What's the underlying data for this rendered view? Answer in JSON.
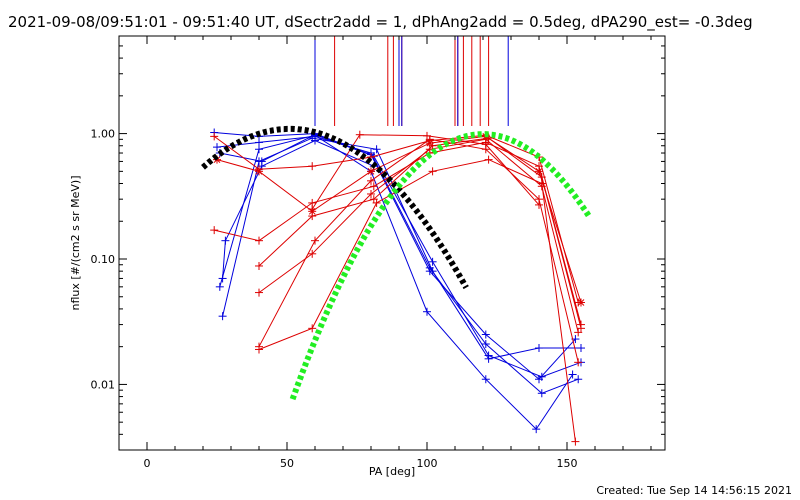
{
  "chart_data": {
    "type": "line",
    "title": "2021-09-08/09:51:01 - 09:51:40 UT, dSectr2add = 1, dPhAng2add = 0.5deg, dPA290_est= -0.3deg",
    "xlabel": "PA [deg]",
    "ylabel": "nflux [#/(cm2 s sr MeV)]",
    "footer": "Created: Tue Sep 14 14:56:15 2021",
    "xlim": [
      -10,
      185
    ],
    "ylim": [
      0.003,
      6
    ],
    "yscale": "log",
    "x_ticks": [
      0,
      50,
      100,
      150
    ],
    "x_tick_labels": [
      "0",
      "50",
      "100",
      "150"
    ],
    "y_ticks": [
      0.01,
      0.1,
      1.0
    ],
    "y_tick_labels": [
      "0.01",
      "0.10",
      "1.00"
    ],
    "legend": "none",
    "grid": false,
    "colors": {
      "red": "#dd0000",
      "blue": "#0000dd",
      "black": "#000000",
      "green": "#22ee22"
    },
    "markers": [
      {
        "x": 60,
        "color": "red"
      },
      {
        "x": 67,
        "color": "red"
      },
      {
        "x": 86,
        "color": "red"
      },
      {
        "x": 88,
        "color": "red"
      },
      {
        "x": 90,
        "color": "red"
      },
      {
        "x": 91,
        "color": "red"
      },
      {
        "x": 110,
        "color": "red"
      },
      {
        "x": 111,
        "color": "red"
      },
      {
        "x": 113,
        "color": "red"
      },
      {
        "x": 116,
        "color": "red"
      },
      {
        "x": 119,
        "color": "red"
      },
      {
        "x": 122,
        "color": "red"
      },
      {
        "x": 60,
        "color": "blue"
      },
      {
        "x": 90,
        "color": "blue"
      },
      {
        "x": 91,
        "color": "blue"
      },
      {
        "x": 111,
        "color": "blue"
      },
      {
        "x": 129,
        "color": "blue"
      }
    ],
    "series": [
      {
        "color": "blue",
        "marker": "plus",
        "x": [
          24,
          40,
          60,
          80,
          101,
          121,
          140,
          153
        ],
        "y": [
          1.02,
          0.95,
          1.0,
          0.68,
          0.08,
          0.025,
          0.011,
          0.023
        ]
      },
      {
        "color": "blue",
        "marker": "plus",
        "x": [
          25,
          40,
          60,
          80,
          101,
          121,
          141,
          154
        ],
        "y": [
          0.78,
          0.85,
          0.95,
          0.7,
          0.085,
          0.021,
          0.0085,
          0.011
        ]
      },
      {
        "color": "blue",
        "marker": "plus",
        "x": [
          26,
          41,
          60,
          81,
          102,
          122,
          141,
          155
        ],
        "y": [
          0.7,
          0.6,
          0.98,
          0.66,
          0.095,
          0.017,
          0.0115,
          0.015
        ]
      },
      {
        "color": "blue",
        "marker": "plus",
        "x": [
          26,
          40,
          60,
          80,
          100,
          121,
          139,
          152
        ],
        "y": [
          0.06,
          0.75,
          0.97,
          0.5,
          0.038,
          0.011,
          0.0044,
          0.012
        ]
      },
      {
        "color": "blue",
        "marker": "plus",
        "x": [
          27,
          40,
          59,
          82,
          102,
          122,
          140,
          155
        ],
        "y": [
          0.035,
          0.6,
          0.92,
          0.75,
          0.08,
          0.016,
          0.0195,
          0.0195
        ]
      },
      {
        "color": "blue",
        "marker": "plus",
        "x": [
          27,
          28,
          41,
          60,
          81
        ],
        "y": [
          0.07,
          0.14,
          0.55,
          0.88,
          0.55
        ]
      },
      {
        "color": "red",
        "marker": "plus",
        "x": [
          24,
          40,
          59,
          80,
          101,
          121,
          140,
          154
        ],
        "y": [
          0.95,
          0.52,
          0.55,
          0.65,
          0.88,
          0.97,
          0.65,
          0.045
        ]
      },
      {
        "color": "red",
        "marker": "star",
        "x": [
          25,
          40,
          59,
          80,
          101,
          121,
          140,
          155
        ],
        "y": [
          0.62,
          0.5,
          0.24,
          0.5,
          0.84,
          0.95,
          0.5,
          0.045
        ]
      },
      {
        "color": "red",
        "marker": "plus",
        "x": [
          24,
          40,
          59,
          81,
          101,
          121,
          140,
          155
        ],
        "y": [
          0.17,
          0.14,
          0.28,
          0.38,
          0.7,
          0.85,
          0.55,
          0.03
        ]
      },
      {
        "color": "red",
        "marker": "plus",
        "x": [
          40,
          59,
          81,
          102,
          122,
          141,
          155
        ],
        "y": [
          0.088,
          0.22,
          0.3,
          0.8,
          0.92,
          0.45,
          0.028
        ]
      },
      {
        "color": "red",
        "marker": "plus",
        "x": [
          40,
          59,
          80,
          101,
          121,
          141,
          154
        ],
        "y": [
          0.054,
          0.11,
          0.33,
          0.75,
          0.9,
          0.38,
          0.026
        ]
      },
      {
        "color": "red",
        "marker": "plus",
        "x": [
          40,
          59,
          82,
          102,
          122,
          141,
          153
        ],
        "y": [
          0.019,
          0.028,
          0.28,
          0.5,
          0.62,
          0.4,
          0.0035
        ]
      },
      {
        "color": "red",
        "marker": "plus",
        "x": [
          40,
          60,
          80,
          101,
          121,
          140,
          154
        ],
        "y": [
          0.02,
          0.14,
          0.42,
          0.9,
          0.75,
          0.3,
          0.015
        ]
      },
      {
        "color": "red",
        "marker": "plus",
        "x": [
          59,
          76,
          100,
          121,
          140
        ],
        "y": [
          0.25,
          0.98,
          0.96,
          0.82,
          0.27
        ]
      }
    ],
    "fits": [
      {
        "color": "black",
        "style": "thick-dashed",
        "x_range": [
          20,
          114
        ],
        "center": 51,
        "sigma": 26.1,
        "amplitude": 1.09
      },
      {
        "color": "green",
        "style": "thick-dashed",
        "x_range": [
          52,
          158
        ],
        "center": 120,
        "sigma": 21.8,
        "amplitude": 0.99
      }
    ]
  }
}
